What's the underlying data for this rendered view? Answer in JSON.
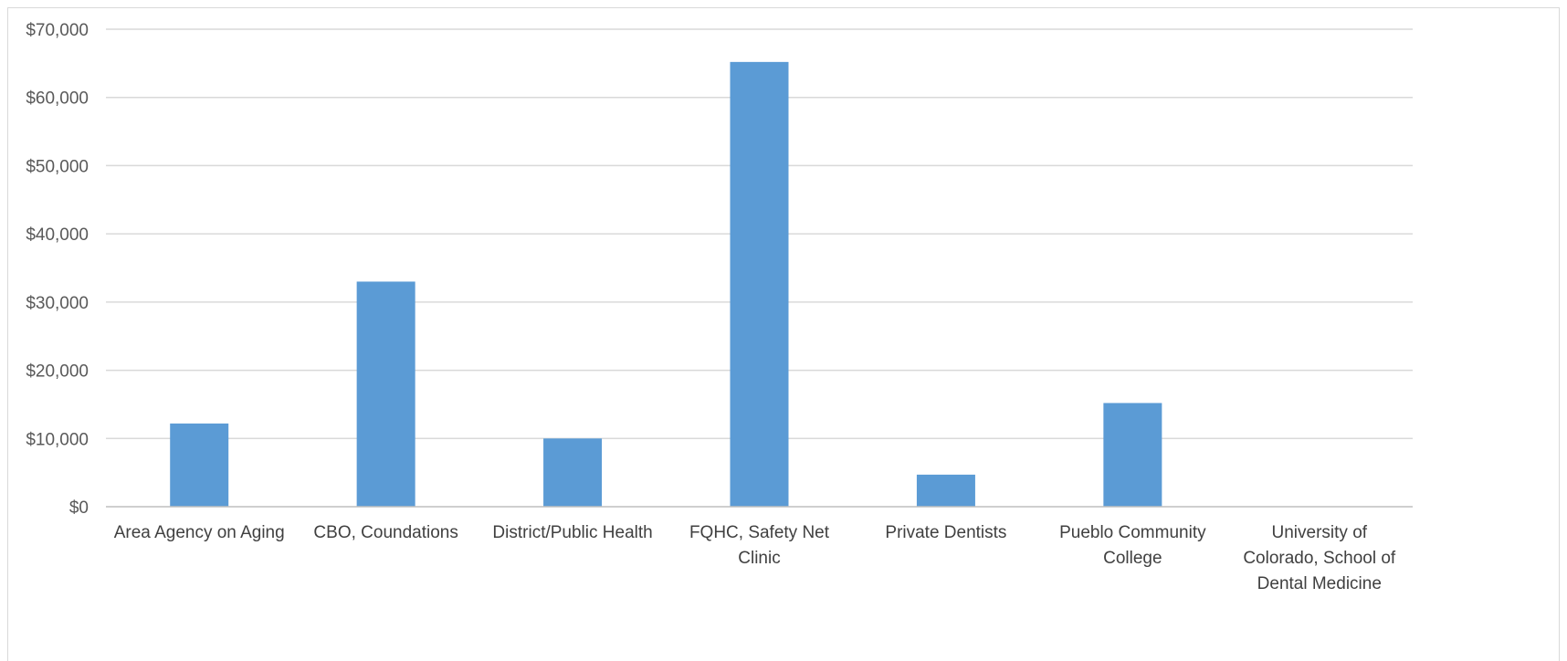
{
  "chart_data": {
    "type": "bar",
    "categories": [
      [
        "Area Agency on Aging"
      ],
      [
        "CBO, Coundations"
      ],
      [
        "District/Public Health"
      ],
      [
        "FQHC, Safety Net",
        "Clinic"
      ],
      [
        "Private Dentists"
      ],
      [
        "Pueblo Community",
        "College"
      ],
      [
        "University of",
        "Colorado, School of",
        "Dental Medicine"
      ]
    ],
    "values": [
      12200,
      33000,
      10000,
      65200,
      4700,
      15200,
      0
    ],
    "ylim": [
      0,
      70000
    ],
    "yticks": [
      "$0",
      "$10,000",
      "$20,000",
      "$30,000",
      "$40,000",
      "$50,000",
      "$60,000",
      "$70,000"
    ],
    "grid": true,
    "title": "",
    "xlabel": "",
    "ylabel": "",
    "colors": {
      "bar": "#5b9bd5",
      "grid": "#d9d9d9",
      "axis": "#bfbfbf"
    }
  }
}
